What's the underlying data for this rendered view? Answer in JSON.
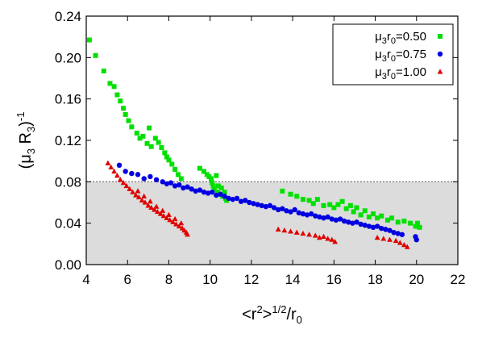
{
  "chart_data": {
    "type": "scatter",
    "title": "",
    "xlim": [
      4,
      22
    ],
    "ylim": [
      0.0,
      0.24
    ],
    "xticks": [
      "4",
      "6",
      "8",
      "10",
      "12",
      "14",
      "16",
      "18",
      "20",
      "22"
    ],
    "yticks": [
      "0.00",
      "0.04",
      "0.08",
      "0.12",
      "0.16",
      "0.20",
      "0.24"
    ],
    "xlabel": {
      "open": "<r",
      "sup1": "2",
      "mid": ">",
      "sup2": "1/2",
      "tail": "/r",
      "sub": "0"
    },
    "ylabel": {
      "open": "(μ",
      "sub1": "3",
      "mid": " R",
      "sub2": "3",
      "close": ")",
      "sup": "-1"
    },
    "shaded_region": {
      "y_from": 0.0,
      "y_to": 0.08,
      "color": "#dcdcdc",
      "border": "dotted"
    },
    "legend": {
      "position": "top-right"
    },
    "series": [
      {
        "name": "μ3r0=0.50",
        "label": {
          "mu": "μ",
          "sub1": "3",
          "r": "r",
          "sub2": "0",
          "value": "=0.50"
        },
        "color": "#00e000",
        "marker": "square",
        "points": [
          [
            4.15,
            0.217
          ],
          [
            4.45,
            0.202
          ],
          [
            4.85,
            0.187
          ],
          [
            5.15,
            0.175
          ],
          [
            5.35,
            0.172
          ],
          [
            5.5,
            0.164
          ],
          [
            5.65,
            0.158
          ],
          [
            5.8,
            0.151
          ],
          [
            5.9,
            0.145
          ],
          [
            6.05,
            0.139
          ],
          [
            6.2,
            0.133
          ],
          [
            6.45,
            0.127
          ],
          [
            6.6,
            0.122
          ],
          [
            6.75,
            0.124
          ],
          [
            6.95,
            0.117
          ],
          [
            7.05,
            0.132
          ],
          [
            7.15,
            0.114
          ],
          [
            7.35,
            0.122
          ],
          [
            7.5,
            0.118
          ],
          [
            7.65,
            0.113
          ],
          [
            7.8,
            0.108
          ],
          [
            7.9,
            0.104
          ],
          [
            8.0,
            0.101
          ],
          [
            8.15,
            0.097
          ],
          [
            8.3,
            0.092
          ],
          [
            8.45,
            0.087
          ],
          [
            8.6,
            0.083
          ],
          [
            9.5,
            0.093
          ],
          [
            9.7,
            0.09
          ],
          [
            9.85,
            0.087
          ],
          [
            9.95,
            0.085
          ],
          [
            10.05,
            0.083
          ],
          [
            10.1,
            0.079
          ],
          [
            10.15,
            0.076
          ],
          [
            10.2,
            0.073
          ],
          [
            10.3,
            0.086
          ],
          [
            10.35,
            0.07
          ],
          [
            10.4,
            0.076
          ],
          [
            10.45,
            0.068
          ],
          [
            10.55,
            0.074
          ],
          [
            10.6,
            0.066
          ],
          [
            10.7,
            0.07
          ],
          [
            10.75,
            0.064
          ],
          [
            10.8,
            0.062
          ],
          [
            13.5,
            0.071
          ],
          [
            13.9,
            0.068
          ],
          [
            14.2,
            0.066
          ],
          [
            14.5,
            0.063
          ],
          [
            14.8,
            0.062
          ],
          [
            15.0,
            0.059
          ],
          [
            15.2,
            0.063
          ],
          [
            15.5,
            0.057
          ],
          [
            15.8,
            0.058
          ],
          [
            16.0,
            0.055
          ],
          [
            16.2,
            0.058
          ],
          [
            16.4,
            0.061
          ],
          [
            16.6,
            0.054
          ],
          [
            16.8,
            0.057
          ],
          [
            16.95,
            0.051
          ],
          [
            17.1,
            0.055
          ],
          [
            17.3,
            0.048
          ],
          [
            17.5,
            0.052
          ],
          [
            17.7,
            0.046
          ],
          [
            17.9,
            0.049
          ],
          [
            18.1,
            0.045
          ],
          [
            18.3,
            0.047
          ],
          [
            18.6,
            0.043
          ],
          [
            18.8,
            0.045
          ],
          [
            19.1,
            0.041
          ],
          [
            19.4,
            0.042
          ],
          [
            19.7,
            0.04
          ],
          [
            19.95,
            0.037
          ],
          [
            20.05,
            0.04
          ],
          [
            20.15,
            0.036
          ]
        ]
      },
      {
        "name": "μ3r0=0.75",
        "label": {
          "mu": "μ",
          "sub1": "3",
          "r": "r",
          "sub2": "0",
          "value": "=0.75"
        },
        "color": "#0000e0",
        "marker": "circle",
        "points": [
          [
            5.6,
            0.096
          ],
          [
            5.9,
            0.09
          ],
          [
            6.2,
            0.088
          ],
          [
            6.5,
            0.087
          ],
          [
            6.8,
            0.083
          ],
          [
            7.1,
            0.085
          ],
          [
            7.4,
            0.082
          ],
          [
            7.7,
            0.08
          ],
          [
            7.9,
            0.078
          ],
          [
            8.1,
            0.079
          ],
          [
            8.3,
            0.076
          ],
          [
            8.5,
            0.077
          ],
          [
            8.7,
            0.074
          ],
          [
            8.9,
            0.075
          ],
          [
            9.1,
            0.073
          ],
          [
            9.3,
            0.071
          ],
          [
            9.5,
            0.072
          ],
          [
            9.7,
            0.07
          ],
          [
            9.9,
            0.069
          ],
          [
            10.1,
            0.07
          ],
          [
            10.3,
            0.067
          ],
          [
            10.5,
            0.068
          ],
          [
            10.7,
            0.066
          ],
          [
            10.9,
            0.064
          ],
          [
            11.1,
            0.063
          ],
          [
            11.3,
            0.064
          ],
          [
            11.5,
            0.061
          ],
          [
            11.7,
            0.062
          ],
          [
            11.9,
            0.06
          ],
          [
            12.1,
            0.059
          ],
          [
            12.3,
            0.058
          ],
          [
            12.5,
            0.057
          ],
          [
            12.7,
            0.056
          ],
          [
            12.9,
            0.057
          ],
          [
            13.1,
            0.055
          ],
          [
            13.3,
            0.053
          ],
          [
            13.5,
            0.054
          ],
          [
            13.7,
            0.052
          ],
          [
            13.9,
            0.051
          ],
          [
            14.1,
            0.053
          ],
          [
            14.3,
            0.05
          ],
          [
            14.5,
            0.049
          ],
          [
            14.7,
            0.048
          ],
          [
            14.9,
            0.049
          ],
          [
            15.1,
            0.047
          ],
          [
            15.3,
            0.046
          ],
          [
            15.5,
            0.045
          ],
          [
            15.7,
            0.046
          ],
          [
            15.9,
            0.044
          ],
          [
            16.1,
            0.043
          ],
          [
            16.3,
            0.044
          ],
          [
            16.5,
            0.042
          ],
          [
            16.7,
            0.041
          ],
          [
            16.9,
            0.04
          ],
          [
            17.1,
            0.041
          ],
          [
            17.3,
            0.039
          ],
          [
            17.5,
            0.038
          ],
          [
            17.7,
            0.037
          ],
          [
            17.9,
            0.036
          ],
          [
            18.1,
            0.037
          ],
          [
            18.3,
            0.035
          ],
          [
            18.5,
            0.034
          ],
          [
            18.7,
            0.033
          ],
          [
            18.9,
            0.031
          ],
          [
            19.1,
            0.03
          ],
          [
            19.3,
            0.029
          ],
          [
            19.95,
            0.027
          ],
          [
            20.0,
            0.024
          ]
        ]
      },
      {
        "name": "μ3r0=1.00",
        "label": {
          "mu": "μ",
          "sub1": "3",
          "r": "r",
          "sub2": "0",
          "value": "=1.00"
        },
        "color": "#e00000",
        "marker": "triangle",
        "points": [
          [
            5.05,
            0.098
          ],
          [
            5.2,
            0.094
          ],
          [
            5.35,
            0.09
          ],
          [
            5.5,
            0.086
          ],
          [
            5.65,
            0.082
          ],
          [
            5.8,
            0.079
          ],
          [
            5.95,
            0.076
          ],
          [
            6.1,
            0.073
          ],
          [
            6.25,
            0.07
          ],
          [
            6.4,
            0.067
          ],
          [
            6.5,
            0.071
          ],
          [
            6.55,
            0.065
          ],
          [
            6.7,
            0.062
          ],
          [
            6.8,
            0.066
          ],
          [
            6.85,
            0.06
          ],
          [
            7.0,
            0.057
          ],
          [
            7.1,
            0.061
          ],
          [
            7.15,
            0.055
          ],
          [
            7.3,
            0.053
          ],
          [
            7.4,
            0.056
          ],
          [
            7.45,
            0.051
          ],
          [
            7.6,
            0.049
          ],
          [
            7.7,
            0.052
          ],
          [
            7.75,
            0.047
          ],
          [
            7.9,
            0.045
          ],
          [
            8.0,
            0.048
          ],
          [
            8.05,
            0.043
          ],
          [
            8.2,
            0.041
          ],
          [
            8.3,
            0.044
          ],
          [
            8.35,
            0.039
          ],
          [
            8.5,
            0.037
          ],
          [
            8.6,
            0.04
          ],
          [
            8.65,
            0.035
          ],
          [
            8.75,
            0.033
          ],
          [
            8.85,
            0.031
          ],
          [
            8.9,
            0.029
          ],
          [
            13.3,
            0.034
          ],
          [
            13.6,
            0.033
          ],
          [
            13.9,
            0.032
          ],
          [
            14.2,
            0.031
          ],
          [
            14.5,
            0.03
          ],
          [
            14.8,
            0.029
          ],
          [
            15.1,
            0.028
          ],
          [
            15.3,
            0.026
          ],
          [
            15.5,
            0.027
          ],
          [
            15.7,
            0.025
          ],
          [
            15.9,
            0.024
          ],
          [
            16.05,
            0.022
          ],
          [
            18.1,
            0.026
          ],
          [
            18.4,
            0.025
          ],
          [
            18.7,
            0.024
          ],
          [
            19.0,
            0.023
          ],
          [
            19.2,
            0.021
          ],
          [
            19.4,
            0.019
          ],
          [
            19.55,
            0.017
          ]
        ]
      }
    ]
  }
}
